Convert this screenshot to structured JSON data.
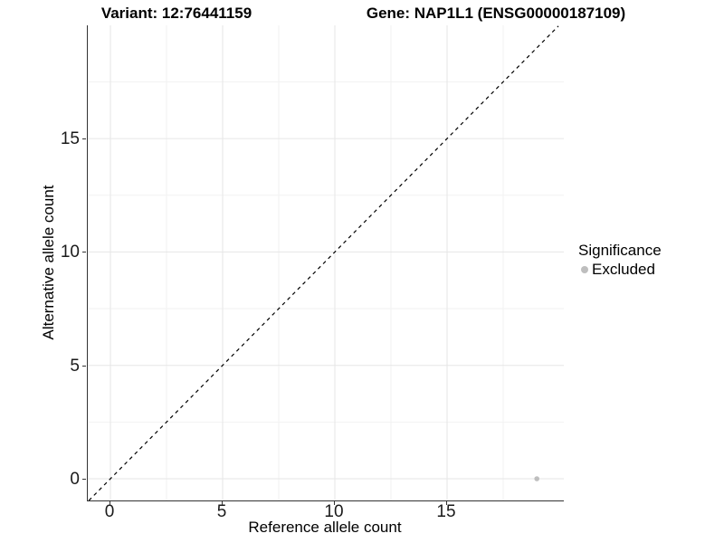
{
  "header": {
    "title_left": "Variant: 12:76441159",
    "title_right": "Gene: NAP1L1 (ENSG00000187109)"
  },
  "chart_data": {
    "type": "scatter",
    "title": "Variant: 12:76441159   Gene: NAP1L1 (ENSG00000187109)",
    "xlabel": "Reference allele count",
    "ylabel": "Alternative allele count",
    "xlim": [
      -1.0,
      20.2
    ],
    "ylim": [
      -0.96,
      19.96
    ],
    "x_ticks": [
      0,
      5,
      10,
      15
    ],
    "y_ticks": [
      0,
      5,
      10,
      15
    ],
    "x_minor_ticks": [
      2.5,
      7.5,
      12.5,
      17.5
    ],
    "y_minor_ticks": [
      2.5,
      7.5,
      12.5,
      17.5
    ],
    "grid": true,
    "identity_line": {
      "slope": 1,
      "intercept": 0,
      "style": "dashed",
      "color": "#000000"
    },
    "series": [
      {
        "name": "Excluded",
        "marker": "circle",
        "color": "#bebebe",
        "points": [
          {
            "x": 19,
            "y": 0
          }
        ]
      }
    ],
    "legend": {
      "title": "Significance",
      "position": "right",
      "entries": [
        {
          "label": "Excluded",
          "color": "#bebebe",
          "marker": "circle"
        }
      ]
    }
  },
  "colors": {
    "background": "#ffffff",
    "grid_major": "#e6e6e6",
    "grid_minor": "#f2f2f2",
    "axis_line": "#333333",
    "tick_text": "#1a1a1a",
    "point": "#bebebe",
    "identity_line": "#000000"
  }
}
